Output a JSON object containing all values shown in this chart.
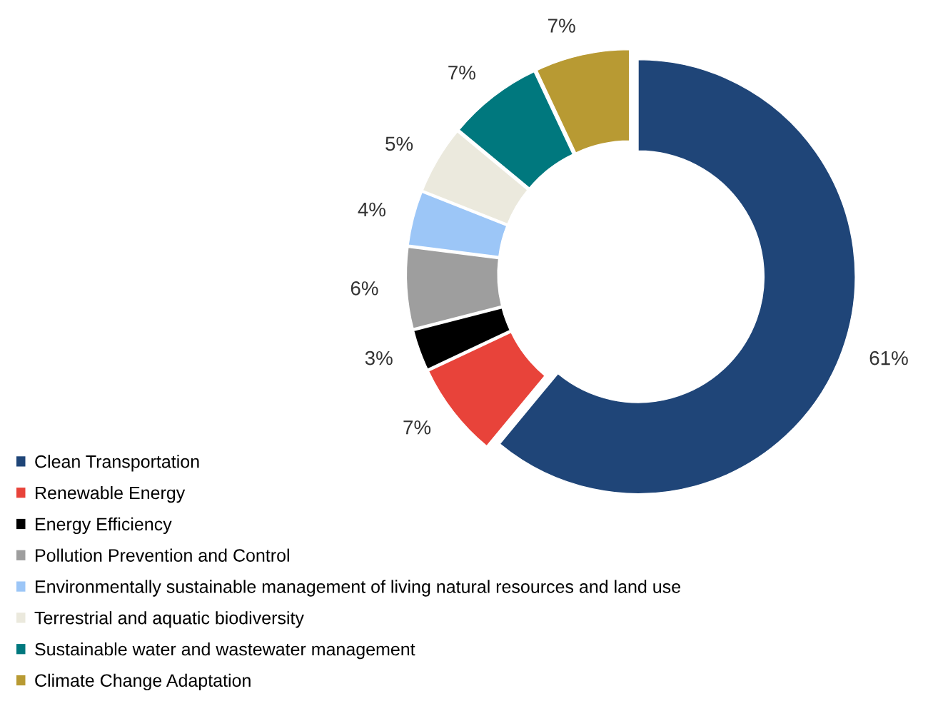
{
  "chart_data": {
    "type": "donut",
    "categories": [
      "Clean Transportation",
      "Renewable Energy",
      "Energy Efficiency",
      "Pollution Prevention and Control",
      "Environmentally sustainable management of living natural resources and land use",
      "Terrestrial and aquatic biodiversity",
      "Sustainable water and wastewater management",
      "Climate Change Adaptation"
    ],
    "values": [
      61,
      7,
      3,
      6,
      4,
      5,
      7,
      7
    ],
    "colors": [
      "#1f4578",
      "#e8433a",
      "#000000",
      "#9e9e9e",
      "#9cc6f7",
      "#ebe9dd",
      "#00787e",
      "#b89a33"
    ],
    "value_labels": [
      "61%",
      "7%",
      "3%",
      "6%",
      "4%",
      "5%",
      "7%",
      "7%"
    ],
    "legend": "bottom left"
  }
}
